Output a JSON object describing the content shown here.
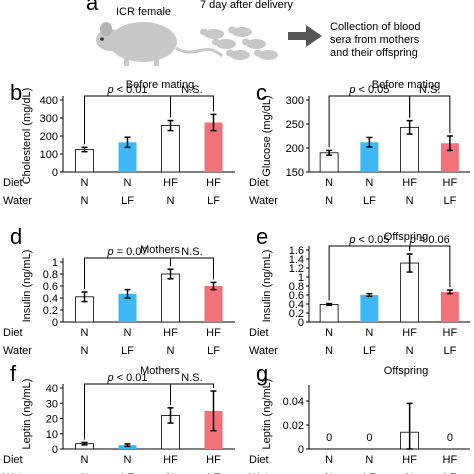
{
  "panel_a": {
    "letter": "a",
    "mouse_label": "ICR female",
    "timing": "7 day after delivery",
    "collection_line1": "Collection of blood",
    "collection_line2": "sera from mothers",
    "collection_line3": "and their offspring"
  },
  "row_labels": {
    "diet": "Diet",
    "water": "Water"
  },
  "chart_data": [
    {
      "panel": "b",
      "type": "bar",
      "title": "Before mating",
      "ylabel": "Cholesterol (mg/dL)",
      "ylim": [
        0,
        400
      ],
      "ticks": [
        0,
        100,
        200,
        300,
        400
      ],
      "tick_labels": [
        "0",
        "100",
        "200",
        "300",
        "400"
      ],
      "categories": [
        "N/N",
        "N/LF",
        "HF/N",
        "HF/LF"
      ],
      "diet": [
        "N",
        "N",
        "HF",
        "HF"
      ],
      "water": [
        "N",
        "LF",
        "N",
        "LF"
      ],
      "values": [
        125,
        165,
        258,
        275
      ],
      "errors": [
        12,
        28,
        28,
        45
      ],
      "colors": [
        "#ffffff",
        "#3db8f5",
        "#ffffff",
        "#f2727a"
      ],
      "value_labels": [],
      "brackets": [
        {
          "from": 0,
          "to": 2,
          "label": "p < 0.01",
          "italic_p": true
        },
        {
          "from": 2,
          "to": 3,
          "label": "N.S.",
          "italic_p": false
        }
      ]
    },
    {
      "panel": "c",
      "type": "bar",
      "title": "Before mating",
      "ylabel": "Glucose (mg/dL)",
      "ylim": [
        150,
        300
      ],
      "ticks": [
        150,
        200,
        250,
        300
      ],
      "tick_labels": [
        "150",
        "200",
        "250",
        "300"
      ],
      "categories": [
        "N/N",
        "N/LF",
        "HF/N",
        "HF/LF"
      ],
      "diet": [
        "N",
        "N",
        "HF",
        "HF"
      ],
      "water": [
        "N",
        "LF",
        "N",
        "LF"
      ],
      "values": [
        190,
        212,
        243,
        210
      ],
      "errors": [
        5,
        10,
        14,
        15
      ],
      "colors": [
        "#ffffff",
        "#3db8f5",
        "#ffffff",
        "#f2727a"
      ],
      "value_labels": [],
      "brackets": [
        {
          "from": 0,
          "to": 2,
          "label": "p < 0.05",
          "italic_p": true
        },
        {
          "from": 2,
          "to": 3,
          "label": "N.S.",
          "italic_p": false
        }
      ]
    },
    {
      "panel": "d",
      "type": "bar",
      "title": "Mothers",
      "ylabel": "Insulin (ng/mL)",
      "ylim": [
        0,
        1
      ],
      "ticks": [
        0,
        0.2,
        0.4,
        0.6,
        0.8,
        1
      ],
      "tick_labels": [
        "0",
        "0.2",
        "0.4",
        "0.6",
        "0.8",
        "1"
      ],
      "categories": [
        "N/N",
        "N/LF",
        "HF/N",
        "HF/LF"
      ],
      "diet": [
        "N",
        "N",
        "HF",
        "HF"
      ],
      "water": [
        "N",
        "LF",
        "N",
        "LF"
      ],
      "values": [
        0.42,
        0.47,
        0.8,
        0.6
      ],
      "errors": [
        0.08,
        0.07,
        0.08,
        0.06
      ],
      "colors": [
        "#ffffff",
        "#3db8f5",
        "#ffffff",
        "#f2727a"
      ],
      "value_labels": [],
      "brackets": [
        {
          "from": 0,
          "to": 2,
          "label": "p = 0.07",
          "italic_p": true
        },
        {
          "from": 2,
          "to": 3,
          "label": "N.S.",
          "italic_p": false
        }
      ]
    },
    {
      "panel": "e",
      "type": "bar",
      "title": "Offspring",
      "ylabel": "Insulin (ng/mL)",
      "ylim": [
        0,
        1.6
      ],
      "ticks": [
        0,
        0.2,
        0.4,
        0.6,
        0.8,
        1,
        1.2,
        1.4,
        1.6
      ],
      "tick_labels": [
        "0",
        "0.2",
        "0.4",
        "0.6",
        "0.8",
        "1",
        "1.2",
        "1.4",
        "1.6"
      ],
      "categories": [
        "N/N",
        "N/LF",
        "HF/N",
        "HF/LF"
      ],
      "diet": [
        "N",
        "N",
        "HF",
        "HF"
      ],
      "water": [
        "N",
        "LF",
        "N",
        "LF"
      ],
      "values": [
        0.39,
        0.6,
        1.31,
        0.67
      ],
      "errors": [
        0.02,
        0.03,
        0.2,
        0.04
      ],
      "colors": [
        "#ffffff",
        "#3db8f5",
        "#ffffff",
        "#f2727a"
      ],
      "value_labels": [],
      "brackets": [
        {
          "from": 0,
          "to": 2,
          "label": "p < 0.05",
          "italic_p": true
        },
        {
          "from": 2,
          "to": 3,
          "label": "p = 0.06",
          "italic_p": true
        }
      ]
    },
    {
      "panel": "f",
      "type": "bar",
      "title": "Mothers",
      "ylabel": "Leptin (ng/mL)",
      "ylim": [
        0,
        40
      ],
      "ticks": [
        0,
        10,
        20,
        30,
        40
      ],
      "tick_labels": [
        "0",
        "10",
        "20",
        "30",
        "40"
      ],
      "categories": [
        "N/N",
        "N/LF",
        "HF/N",
        "HF/LF"
      ],
      "diet": [
        "N",
        "N",
        "HF",
        "HF"
      ],
      "water": [
        "N",
        "LF",
        "N",
        "LF"
      ],
      "values": [
        3.5,
        2.5,
        22,
        25
      ],
      "errors": [
        0.8,
        0.8,
        5,
        13
      ],
      "colors": [
        "#ffffff",
        "#3db8f5",
        "#ffffff",
        "#f2727a"
      ],
      "value_labels": [],
      "brackets": [
        {
          "from": 0,
          "to": 2,
          "label": "p < 0.01",
          "italic_p": true
        },
        {
          "from": 2,
          "to": 3,
          "label": "N.S.",
          "italic_p": false
        }
      ]
    },
    {
      "panel": "g",
      "type": "bar",
      "title": "Offspring",
      "ylabel": "Leptin (ng/mL)",
      "ylim": [
        0,
        0.05
      ],
      "ticks": [
        0,
        0.02,
        0.04
      ],
      "tick_labels": [
        "0",
        "0.02",
        "0.04"
      ],
      "categories": [
        "N/N",
        "N/LF",
        "HF/N",
        "HF/LF"
      ],
      "diet": [
        "N",
        "N",
        "HF",
        "HF"
      ],
      "water": [
        "N",
        "LF",
        "N",
        "LF"
      ],
      "values": [
        0,
        0,
        0.014,
        0
      ],
      "errors": [
        0,
        0,
        0.024,
        0
      ],
      "colors": [
        "#ffffff",
        "#3db8f5",
        "#ffffff",
        "#f2727a"
      ],
      "value_labels": [
        "0",
        "0",
        "",
        "0"
      ],
      "brackets": []
    }
  ]
}
